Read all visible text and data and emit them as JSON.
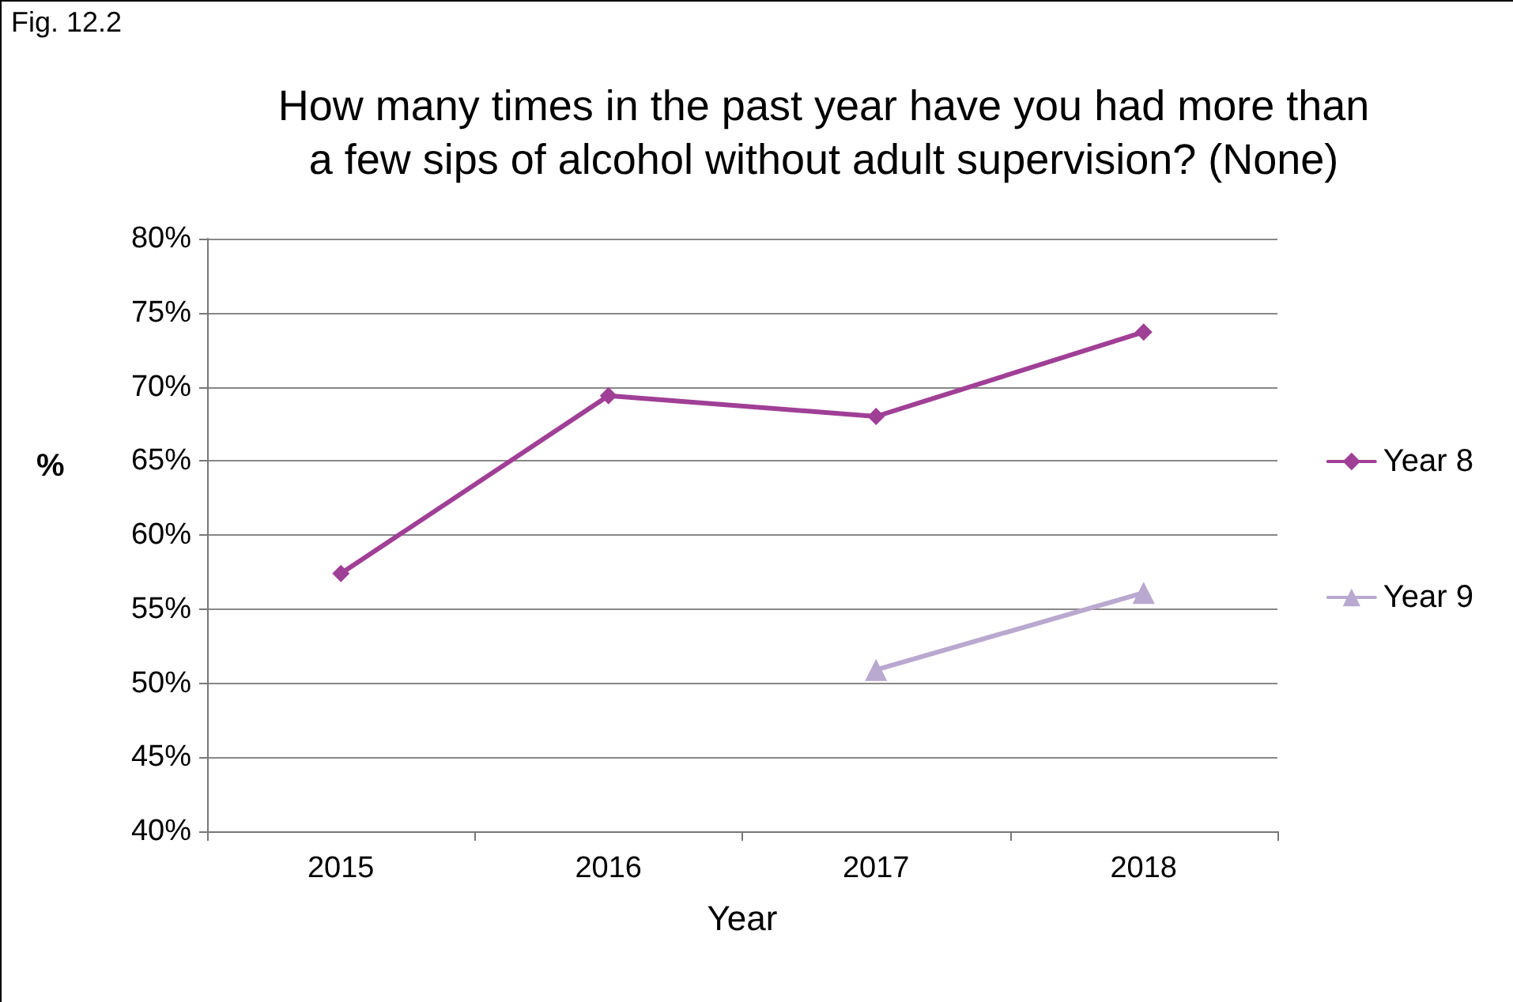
{
  "chart_data": {
    "type": "line",
    "title": "How many times in the past year have you had more than\na few sips of alcohol without adult supervision? (None)",
    "annotations": [
      "Fig. 12.2"
    ],
    "xlabel": "Year",
    "ylabel": "%",
    "categories": [
      "2015",
      "2016",
      "2017",
      "2018"
    ],
    "series": [
      {
        "name": "Year 8",
        "color": "#a03f96",
        "marker": "diamond",
        "values": [
          57.4,
          69.4,
          68.0,
          73.7
        ]
      },
      {
        "name": "Year 9",
        "color": "#b9a8cf",
        "marker": "triangle",
        "values": [
          null,
          null,
          50.9,
          56.1
        ]
      }
    ],
    "ylim": [
      40,
      80
    ],
    "yticks": [
      {
        "value": 40,
        "label": "40%"
      },
      {
        "value": 45,
        "label": "45%"
      },
      {
        "value": 50,
        "label": "50%"
      },
      {
        "value": 55,
        "label": "55%"
      },
      {
        "value": 60,
        "label": "60%"
      },
      {
        "value": 65,
        "label": "65%"
      },
      {
        "value": 70,
        "label": "70%"
      },
      {
        "value": 75,
        "label": "75%"
      },
      {
        "value": 80,
        "label": "80%"
      }
    ],
    "grid": "y",
    "legend": "right",
    "line_style": "solid"
  }
}
